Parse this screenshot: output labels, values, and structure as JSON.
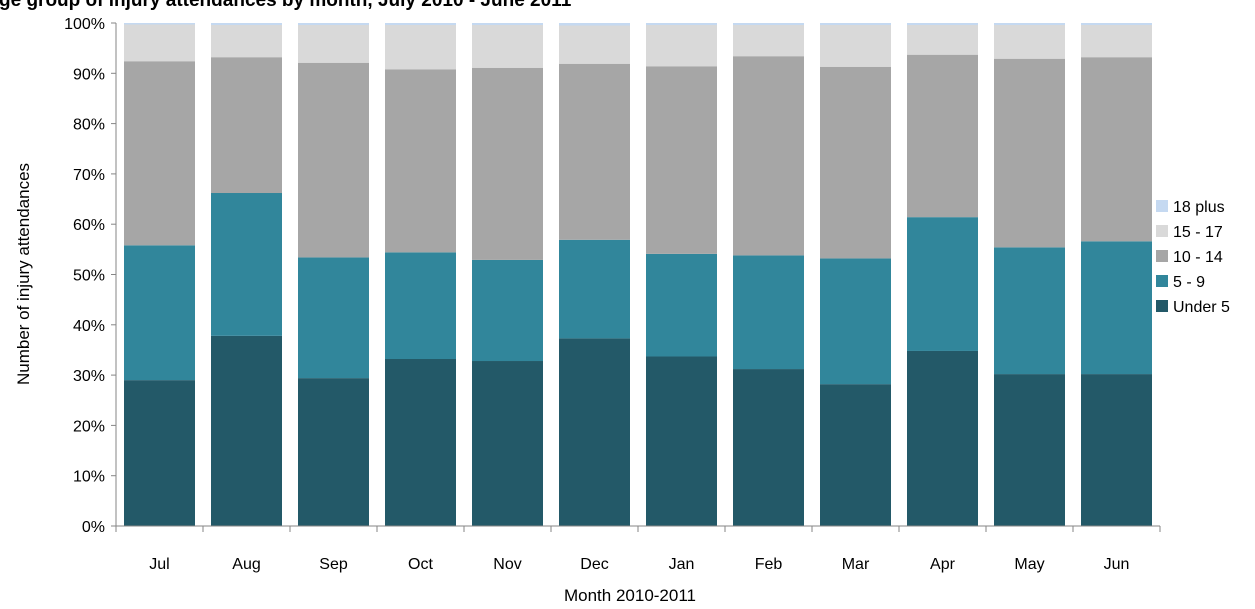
{
  "chart_data": {
    "type": "bar",
    "stacked": true,
    "percent_stacked": true,
    "title": "ge group of injury attendances by month, July 2010 - June 2011",
    "xlabel": "Month 2010-2011",
    "ylabel": "Number of injury attendances",
    "categories": [
      "Jul",
      "Aug",
      "Sep",
      "Oct",
      "Nov",
      "Dec",
      "Jan",
      "Feb",
      "Mar",
      "Apr",
      "May",
      "Jun"
    ],
    "y_ticks": [
      "0%",
      "10%",
      "20%",
      "30%",
      "40%",
      "50%",
      "60%",
      "70%",
      "80%",
      "90%",
      "100%"
    ],
    "ylim": [
      0,
      100
    ],
    "grid": false,
    "legend_position": "right",
    "series": [
      {
        "name": "Under 5",
        "color": "#235968",
        "values": [
          29.0,
          37.8,
          29.4,
          33.2,
          32.8,
          37.3,
          33.7,
          31.2,
          28.2,
          34.8,
          30.2,
          30.2
        ]
      },
      {
        "name": "5 - 9",
        "color": "#31869b",
        "values": [
          26.8,
          28.4,
          24.0,
          21.2,
          20.1,
          19.6,
          20.4,
          22.6,
          25.0,
          26.6,
          25.2,
          26.4
        ]
      },
      {
        "name": "10 - 14",
        "color": "#a6a6a6",
        "values": [
          36.6,
          27.0,
          38.7,
          36.4,
          38.2,
          35.0,
          37.3,
          39.6,
          38.1,
          32.3,
          37.5,
          36.6
        ]
      },
      {
        "name": "15 - 17",
        "color": "#d9d9d9",
        "values": [
          7.3,
          6.4,
          7.5,
          8.8,
          8.5,
          7.6,
          8.2,
          6.2,
          8.3,
          5.9,
          6.7,
          6.4
        ]
      },
      {
        "name": "18 plus",
        "color": "#c5d9f1",
        "values": [
          0.3,
          0.4,
          0.4,
          0.4,
          0.4,
          0.5,
          0.4,
          0.4,
          0.4,
          0.4,
          0.4,
          0.4
        ]
      }
    ]
  }
}
